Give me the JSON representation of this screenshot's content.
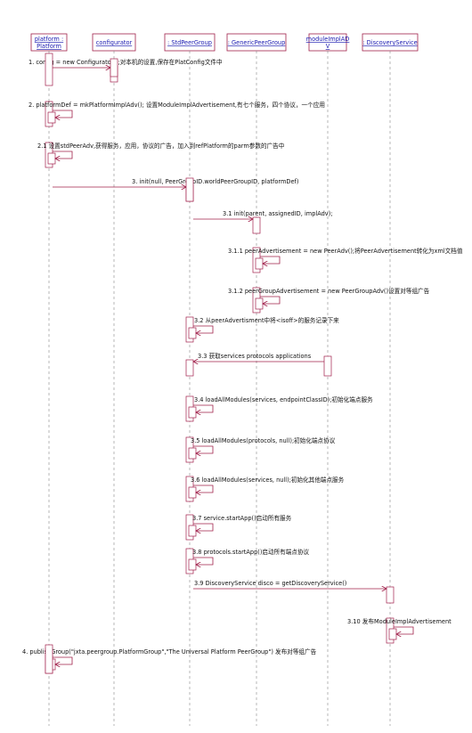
{
  "participants": [
    {
      "label": [
        "platform :",
        "Platform"
      ]
    },
    {
      "label": [
        "configurator"
      ]
    },
    {
      "label": [
        ": StdPeerGroup"
      ]
    },
    {
      "label": [
        ": GenericPeerGroup"
      ]
    },
    {
      "label": [
        "moduleImplAD",
        "V"
      ]
    },
    {
      "label": [
        ": DiscoveryService"
      ]
    }
  ],
  "messages": [
    {
      "label": "1. config = new Configurator();对本机的设置,保存在PlatConfig文件中"
    },
    {
      "label": "2. platformDef = mkPlatformImplAdv(); 设置ModuleImplAdvertisement,有七个服务，四个协议，一个应用"
    },
    {
      "label": "2.1 设置stdPeerAdv,获得服务，应用，协议的广告，加入到refPlatform的parm参数的广告中"
    },
    {
      "label": "3. init(null, PeerGroupID.worldPeerGroupID, platformDef)"
    },
    {
      "label": "3.1 init(parent, assignedID, implAdv);"
    },
    {
      "label": "3.1.1 peerAdvertisement = new PeerAdv();将PeerAdvertisement转化为xml文档值"
    },
    {
      "label": "3.1.2 peerGroupAdvertisement = new PeerGroupAdv()设置对等组广告"
    },
    {
      "label": "3.2 从peerAdvertisment中将<isoff>的服务记录下来"
    },
    {
      "label": "3.3 获取services protocols applications"
    },
    {
      "label": "3.4 loadAllModules(services, endpointClassID);初始化端点服务"
    },
    {
      "label": "3.5 loadAllModules(protocols, null);初始化端点协议"
    },
    {
      "label": "3.6  loadAllModules(services, null);初始化其他端点服务"
    },
    {
      "label": "3.7 service.startApp()启动所有服务"
    },
    {
      "label": "3.8 protocols.startApp()启动所有端点协议"
    },
    {
      "label": "3.9 DiscoveryService disco = getDiscoveryService()"
    },
    {
      "label": "3.10 发布ModuleImplAdvertisement"
    },
    {
      "label": "4. publishGroup(\"jxta.peergroup.PlatformGroup\",\"The Universal Platform PeerGroup\") 发布对等组广告"
    }
  ]
}
